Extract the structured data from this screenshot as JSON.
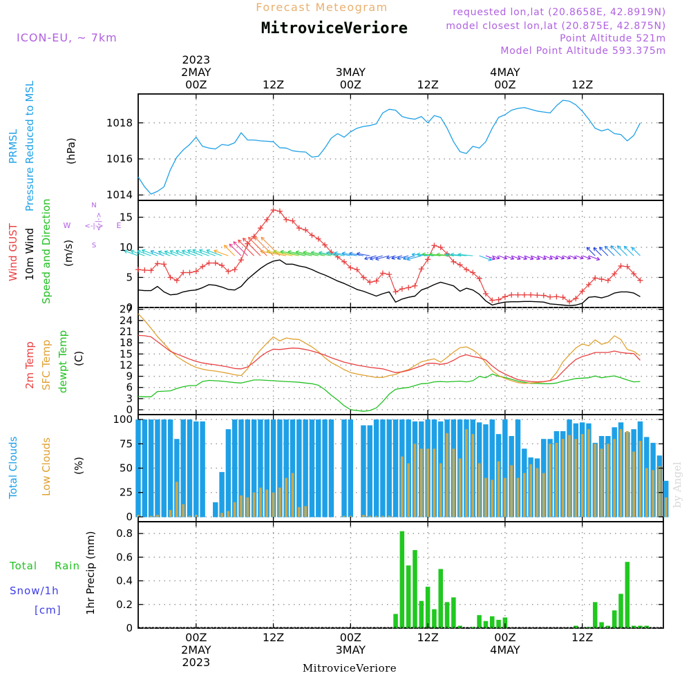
{
  "header": {
    "subtitle": "Forecast Meteogram",
    "title": "MitroviceVeriore",
    "model": "ICON-EU, ~ 7km",
    "requested": "requested lon,lat (20.8658E, 42.8919N)",
    "closest": "model closest lon,lat (20.875E, 42.875N)",
    "point_alt": "Point Altitude 521m",
    "model_alt": "Model Point Altitude 593.375m"
  },
  "footer": {
    "station": "MitroviceVeriore",
    "credit": "by Angel"
  },
  "time_axis": {
    "top_labels": [
      {
        "t": 24,
        "lines": [
          "2023",
          "2MAY",
          "00Z"
        ]
      },
      {
        "t": 36,
        "lines": [
          "12Z"
        ]
      },
      {
        "t": 48,
        "lines": [
          "3MAY",
          "00Z"
        ]
      },
      {
        "t": 60,
        "lines": [
          "12Z"
        ]
      },
      {
        "t": 72,
        "lines": [
          "4MAY",
          "00Z"
        ]
      },
      {
        "t": 84,
        "lines": [
          "12Z"
        ]
      }
    ],
    "bottom_labels": [
      {
        "t": 24,
        "lines": [
          "00Z",
          "2MAY",
          "2023"
        ]
      },
      {
        "t": 36,
        "lines": [
          "12Z"
        ]
      },
      {
        "t": 48,
        "lines": [
          "00Z",
          "3MAY"
        ]
      },
      {
        "t": 60,
        "lines": [
          "12Z"
        ]
      },
      {
        "t": 72,
        "lines": [
          "00Z",
          "4MAY"
        ]
      },
      {
        "t": 84,
        "lines": [
          "12Z"
        ]
      }
    ]
  },
  "colors": {
    "pressure": "#1ea0e6",
    "gust": "#e84040",
    "wind": "#000000",
    "dirlabel": "#20c020",
    "temp2m": "#e84040",
    "sfc": "#e0a030",
    "dewpt": "#20c020",
    "total_cloud": "#1ea0e6",
    "low_cloud": "#c8a850",
    "precip": "#20c820",
    "snow": "#3c3ce6",
    "purple": "#b060e0",
    "orange": "#e8b070"
  },
  "panel_labels": {
    "pressure": {
      "l1": "PRMSL",
      "l2": "Pressure Reduced to MSL",
      "unit": "(hPa)"
    },
    "wind": {
      "l1": "Wind GUST",
      "l2": "10m Wind",
      "l3": "Speed and Direction",
      "unit": "(m/s)",
      "compass_n": "N",
      "compass_s": "S",
      "compass_w": "W",
      "compass_e": "E",
      "compass_h": "<-|->",
      "compass_v": "<-|->"
    },
    "temp": {
      "l1": "2m Temp",
      "l2": "SFC Temp",
      "l3": "dewpt Temp",
      "unit": "(C)"
    },
    "cloud": {
      "l1": "Total Clouds",
      "l2": "Low Clouds",
      "unit": "(%)"
    },
    "precip": {
      "l1": "Total",
      "l1b": "Rain",
      "l2": "Snow/1h",
      "l3": "[cm]",
      "unit": "1hr Precip (mm)"
    }
  },
  "chart_data": [
    {
      "type": "line",
      "panel": "pressure",
      "ylabel": "(hPa)",
      "ylim": [
        1013.7,
        1019.6
      ],
      "yticks": [
        1014,
        1016,
        1018
      ],
      "series": [
        {
          "name": "PRMSL Pressure Reduced to MSL",
          "t0": 15,
          "dt": 1,
          "values": [
            1015.0,
            1014.45,
            1014.05,
            1014.2,
            1014.45,
            1015.4,
            1016.1,
            1016.5,
            1016.8,
            1017.2,
            1016.7,
            1016.6,
            1016.55,
            1016.8,
            1016.75,
            1016.9,
            1017.45,
            1017.05,
            1017.05,
            1017.0,
            1016.98,
            1016.95,
            1016.62,
            1016.6,
            1016.45,
            1016.4,
            1016.38,
            1016.1,
            1016.15,
            1016.6,
            1017.15,
            1017.4,
            1017.2,
            1017.5,
            1017.7,
            1017.8,
            1017.85,
            1017.95,
            1018.55,
            1018.75,
            1018.7,
            1018.35,
            1018.25,
            1018.2,
            1018.35,
            1018.0,
            1018.4,
            1018.3,
            1017.7,
            1016.95,
            1016.4,
            1016.3,
            1016.7,
            1016.6,
            1016.95,
            1017.7,
            1018.3,
            1018.45,
            1018.7,
            1018.8,
            1018.85,
            1018.75,
            1018.65,
            1018.6,
            1018.55,
            1018.95,
            1019.25,
            1019.2,
            1019.0,
            1018.65,
            1018.2,
            1017.7,
            1017.55,
            1017.65,
            1017.4,
            1017.35,
            1017.0,
            1017.3,
            1018.0
          ]
        }
      ]
    },
    {
      "type": "line",
      "panel": "wind",
      "ylabel": "(m/s)",
      "ylim": [
        0,
        17.8
      ],
      "yticks": [
        0,
        5,
        10,
        15
      ],
      "series": [
        {
          "name": "Wind GUST",
          "t0": 15,
          "dt": 1,
          "marker": "+",
          "values": [
            6.3,
            6.2,
            6.15,
            7.3,
            7.2,
            5.0,
            4.5,
            5.8,
            5.8,
            6.0,
            6.8,
            7.4,
            7.4,
            7.0,
            6.0,
            6.3,
            7.9,
            10.6,
            11.8,
            13.2,
            14.6,
            16.2,
            16.0,
            14.6,
            14.4,
            13.2,
            12.9,
            12.0,
            11.4,
            10.4,
            9.2,
            8.4,
            7.6,
            6.6,
            6.3,
            5.0,
            4.2,
            4.4,
            5.7,
            5.5,
            2.6,
            3.1,
            3.3,
            3.6,
            6.4,
            8.0,
            10.3,
            10.0,
            8.9,
            7.6,
            7.1,
            6.3,
            5.8,
            4.8,
            2.3,
            1.2,
            1.3,
            1.8,
            2.1,
            2.1,
            2.1,
            2.1,
            2.05,
            2.0,
            1.75,
            1.8,
            1.7,
            0.95,
            1.5,
            2.7,
            3.8,
            4.9,
            4.7,
            4.5,
            5.6,
            6.9,
            6.8,
            5.6,
            4.5
          ]
        },
        {
          "name": "10m Wind",
          "t0": 15,
          "dt": 1,
          "values": [
            2.9,
            2.8,
            2.8,
            3.5,
            2.6,
            2.1,
            2.2,
            2.6,
            2.8,
            2.9,
            3.3,
            3.8,
            3.7,
            3.4,
            3.0,
            2.9,
            3.5,
            4.7,
            5.6,
            6.5,
            7.2,
            7.7,
            7.9,
            7.2,
            7.2,
            6.9,
            6.7,
            6.3,
            5.8,
            5.4,
            4.9,
            4.4,
            4.0,
            3.5,
            3.0,
            2.7,
            2.3,
            1.9,
            2.3,
            2.6,
            0.9,
            1.4,
            1.7,
            1.9,
            2.9,
            3.3,
            3.8,
            4.2,
            3.9,
            3.6,
            2.7,
            3.2,
            2.9,
            2.2,
            1.1,
            0.4,
            0.7,
            0.9,
            0.95,
            0.95,
            1.0,
            1.0,
            0.95,
            0.9,
            0.6,
            0.5,
            0.4,
            0.3,
            0.4,
            0.7,
            1.7,
            1.8,
            1.6,
            1.9,
            2.4,
            2.6,
            2.6,
            2.4,
            1.8
          ]
        }
      ]
    },
    {
      "type": "line",
      "panel": "temp",
      "ylabel": "(C)",
      "ylim": [
        -1.3,
        27.5
      ],
      "yticks": [
        0,
        3,
        6,
        9,
        12,
        15,
        18,
        21,
        24,
        27
      ],
      "series": [
        {
          "name": "2m Temp",
          "t0": 15,
          "dt": 1,
          "values": [
            20.0,
            19.9,
            19.6,
            18.3,
            17.0,
            15.7,
            15.0,
            14.3,
            13.6,
            13.0,
            12.6,
            12.3,
            12.1,
            11.8,
            11.5,
            11.1,
            11.0,
            11.5,
            12.8,
            14.3,
            15.5,
            16.3,
            16.2,
            16.4,
            16.6,
            16.5,
            16.2,
            15.8,
            15.3,
            14.7,
            14.0,
            13.4,
            12.8,
            12.4,
            12.0,
            11.7,
            11.4,
            11.2,
            11.0,
            10.5,
            10.0,
            10.2,
            10.6,
            11.2,
            11.8,
            12.5,
            12.5,
            12.2,
            12.5,
            13.3,
            14.3,
            14.8,
            14.3,
            14.0,
            13.4,
            11.8,
            10.5,
            9.6,
            8.8,
            8.1,
            7.8,
            7.6,
            7.5,
            7.6,
            7.8,
            8.5,
            10.3,
            12.0,
            13.5,
            14.3,
            14.8,
            15.4,
            15.4,
            15.4,
            15.8,
            15.4,
            15.2,
            15.1,
            13.3
          ]
        },
        {
          "name": "SFC Temp",
          "t0": 15,
          "dt": 1,
          "values": [
            25.8,
            24.0,
            21.9,
            19.7,
            17.8,
            15.9,
            14.3,
            13.2,
            12.2,
            11.4,
            10.9,
            10.6,
            10.4,
            10.1,
            9.8,
            9.4,
            9.2,
            11.0,
            14.1,
            16.1,
            17.9,
            19.6,
            18.5,
            19.3,
            19.0,
            18.9,
            17.9,
            16.9,
            15.6,
            14.0,
            12.7,
            11.8,
            10.8,
            10.0,
            9.6,
            9.3,
            9.0,
            8.7,
            8.7,
            9.2,
            9.5,
            10.3,
            10.8,
            11.9,
            12.9,
            13.3,
            13.7,
            12.8,
            14.1,
            15.5,
            16.7,
            16.9,
            16.1,
            14.8,
            12.6,
            10.5,
            9.2,
            8.4,
            7.8,
            7.3,
            7.1,
            7.2,
            7.3,
            7.5,
            7.9,
            10.0,
            12.9,
            14.8,
            16.6,
            17.7,
            17.2,
            18.8,
            17.6,
            18.1,
            19.9,
            18.9,
            16.2,
            15.7,
            14.5
          ]
        },
        {
          "name": "dewpt Temp",
          "t0": 15,
          "dt": 1,
          "values": [
            3.6,
            3.5,
            3.5,
            4.9,
            5.0,
            5.1,
            5.7,
            6.2,
            6.5,
            6.5,
            7.6,
            7.9,
            7.8,
            7.7,
            7.5,
            7.3,
            7.2,
            7.6,
            8.0,
            8.0,
            7.9,
            7.8,
            7.7,
            7.6,
            7.5,
            7.4,
            7.2,
            7.0,
            6.6,
            5.4,
            3.9,
            2.6,
            1.1,
            0.0,
            -0.2,
            -0.4,
            -0.2,
            0.5,
            2.2,
            4.2,
            5.5,
            5.8,
            6.0,
            6.5,
            7.0,
            7.1,
            7.5,
            7.6,
            7.5,
            7.6,
            7.7,
            7.5,
            7.8,
            9.0,
            8.6,
            9.6,
            9.0,
            8.7,
            8.2,
            7.7,
            7.4,
            7.1,
            7.1,
            7.0,
            7.0,
            7.2,
            7.7,
            8.0,
            8.4,
            8.5,
            8.6,
            9.1,
            8.6,
            8.9,
            9.1,
            8.6,
            8.0,
            7.5,
            7.6
          ]
        }
      ]
    },
    {
      "type": "bar",
      "panel": "cloud",
      "ylabel": "(%)",
      "ylim": [
        -5,
        105
      ],
      "yticks": [
        0,
        25,
        50,
        75,
        100
      ],
      "t0": 15,
      "dt": 1,
      "series": [
        {
          "name": "Total Clouds",
          "values": [
            100,
            100,
            100,
            100,
            100,
            100,
            80,
            100,
            100,
            98,
            98,
            null,
            15,
            46,
            90,
            100,
            100,
            100,
            100,
            100,
            100,
            100,
            100,
            100,
            100,
            100,
            100,
            100,
            100,
            100,
            100,
            null,
            100,
            100,
            null,
            94,
            94,
            100,
            100,
            100,
            100,
            100,
            100,
            98,
            98,
            100,
            100,
            98,
            100,
            100,
            100,
            100,
            100,
            97,
            95,
            100,
            85,
            100,
            83,
            100,
            70,
            61,
            60,
            80,
            80,
            88,
            88,
            100,
            96,
            97,
            96,
            76,
            83,
            83,
            92,
            97,
            87,
            90,
            98,
            82,
            76,
            63,
            37
          ]
        },
        {
          "name": "Low Clouds",
          "values": [
            2,
            0,
            1,
            2,
            0,
            7,
            36,
            13,
            1,
            2,
            0,
            0,
            0,
            4,
            6,
            15,
            22,
            20,
            25,
            30,
            28,
            25,
            30,
            40,
            45,
            10,
            11,
            0,
            0,
            0,
            0,
            0,
            1,
            1,
            0,
            2,
            1,
            1,
            1,
            1,
            0,
            62,
            55,
            75,
            70,
            70,
            70,
            55,
            86,
            70,
            60,
            90,
            85,
            55,
            40,
            38,
            57,
            40,
            53,
            40,
            45,
            54,
            50,
            45,
            75,
            76,
            80,
            84,
            80,
            85,
            90,
            75,
            70,
            75,
            80,
            90,
            88,
            67,
            78,
            50,
            48,
            52,
            20
          ]
        }
      ]
    },
    {
      "type": "bar",
      "panel": "precip",
      "ylabel": "1hr Precip (mm)",
      "ylim": [
        0,
        0.9
      ],
      "yticks": [
        0,
        0.2,
        0.4,
        0.6,
        0.8
      ],
      "t0": 15,
      "dt": 1,
      "series": [
        {
          "name": "Total Rain",
          "values": [
            0,
            0,
            0,
            0,
            0,
            0,
            0,
            0,
            0,
            0,
            0,
            0,
            0,
            0,
            0,
            0,
            0,
            0,
            0,
            0,
            0,
            0,
            0,
            0,
            0,
            0,
            0,
            0,
            0,
            0,
            0,
            0,
            0,
            0,
            0,
            0,
            0,
            0,
            0,
            0,
            0.12,
            0.82,
            0.53,
            0.66,
            0.23,
            0.35,
            0.16,
            0.5,
            0.22,
            0.26,
            0.02,
            0,
            0.01,
            0.11,
            0.06,
            0.1,
            0.07,
            0.09,
            0,
            0,
            0,
            0,
            0,
            0,
            0,
            0,
            0,
            0,
            0.02,
            0,
            0.01,
            0.22,
            0.05,
            0.02,
            0.15,
            0.29,
            0.56,
            0.02,
            0.02,
            0.02
          ]
        },
        {
          "name": "Snow/1h",
          "values": []
        }
      ]
    }
  ]
}
